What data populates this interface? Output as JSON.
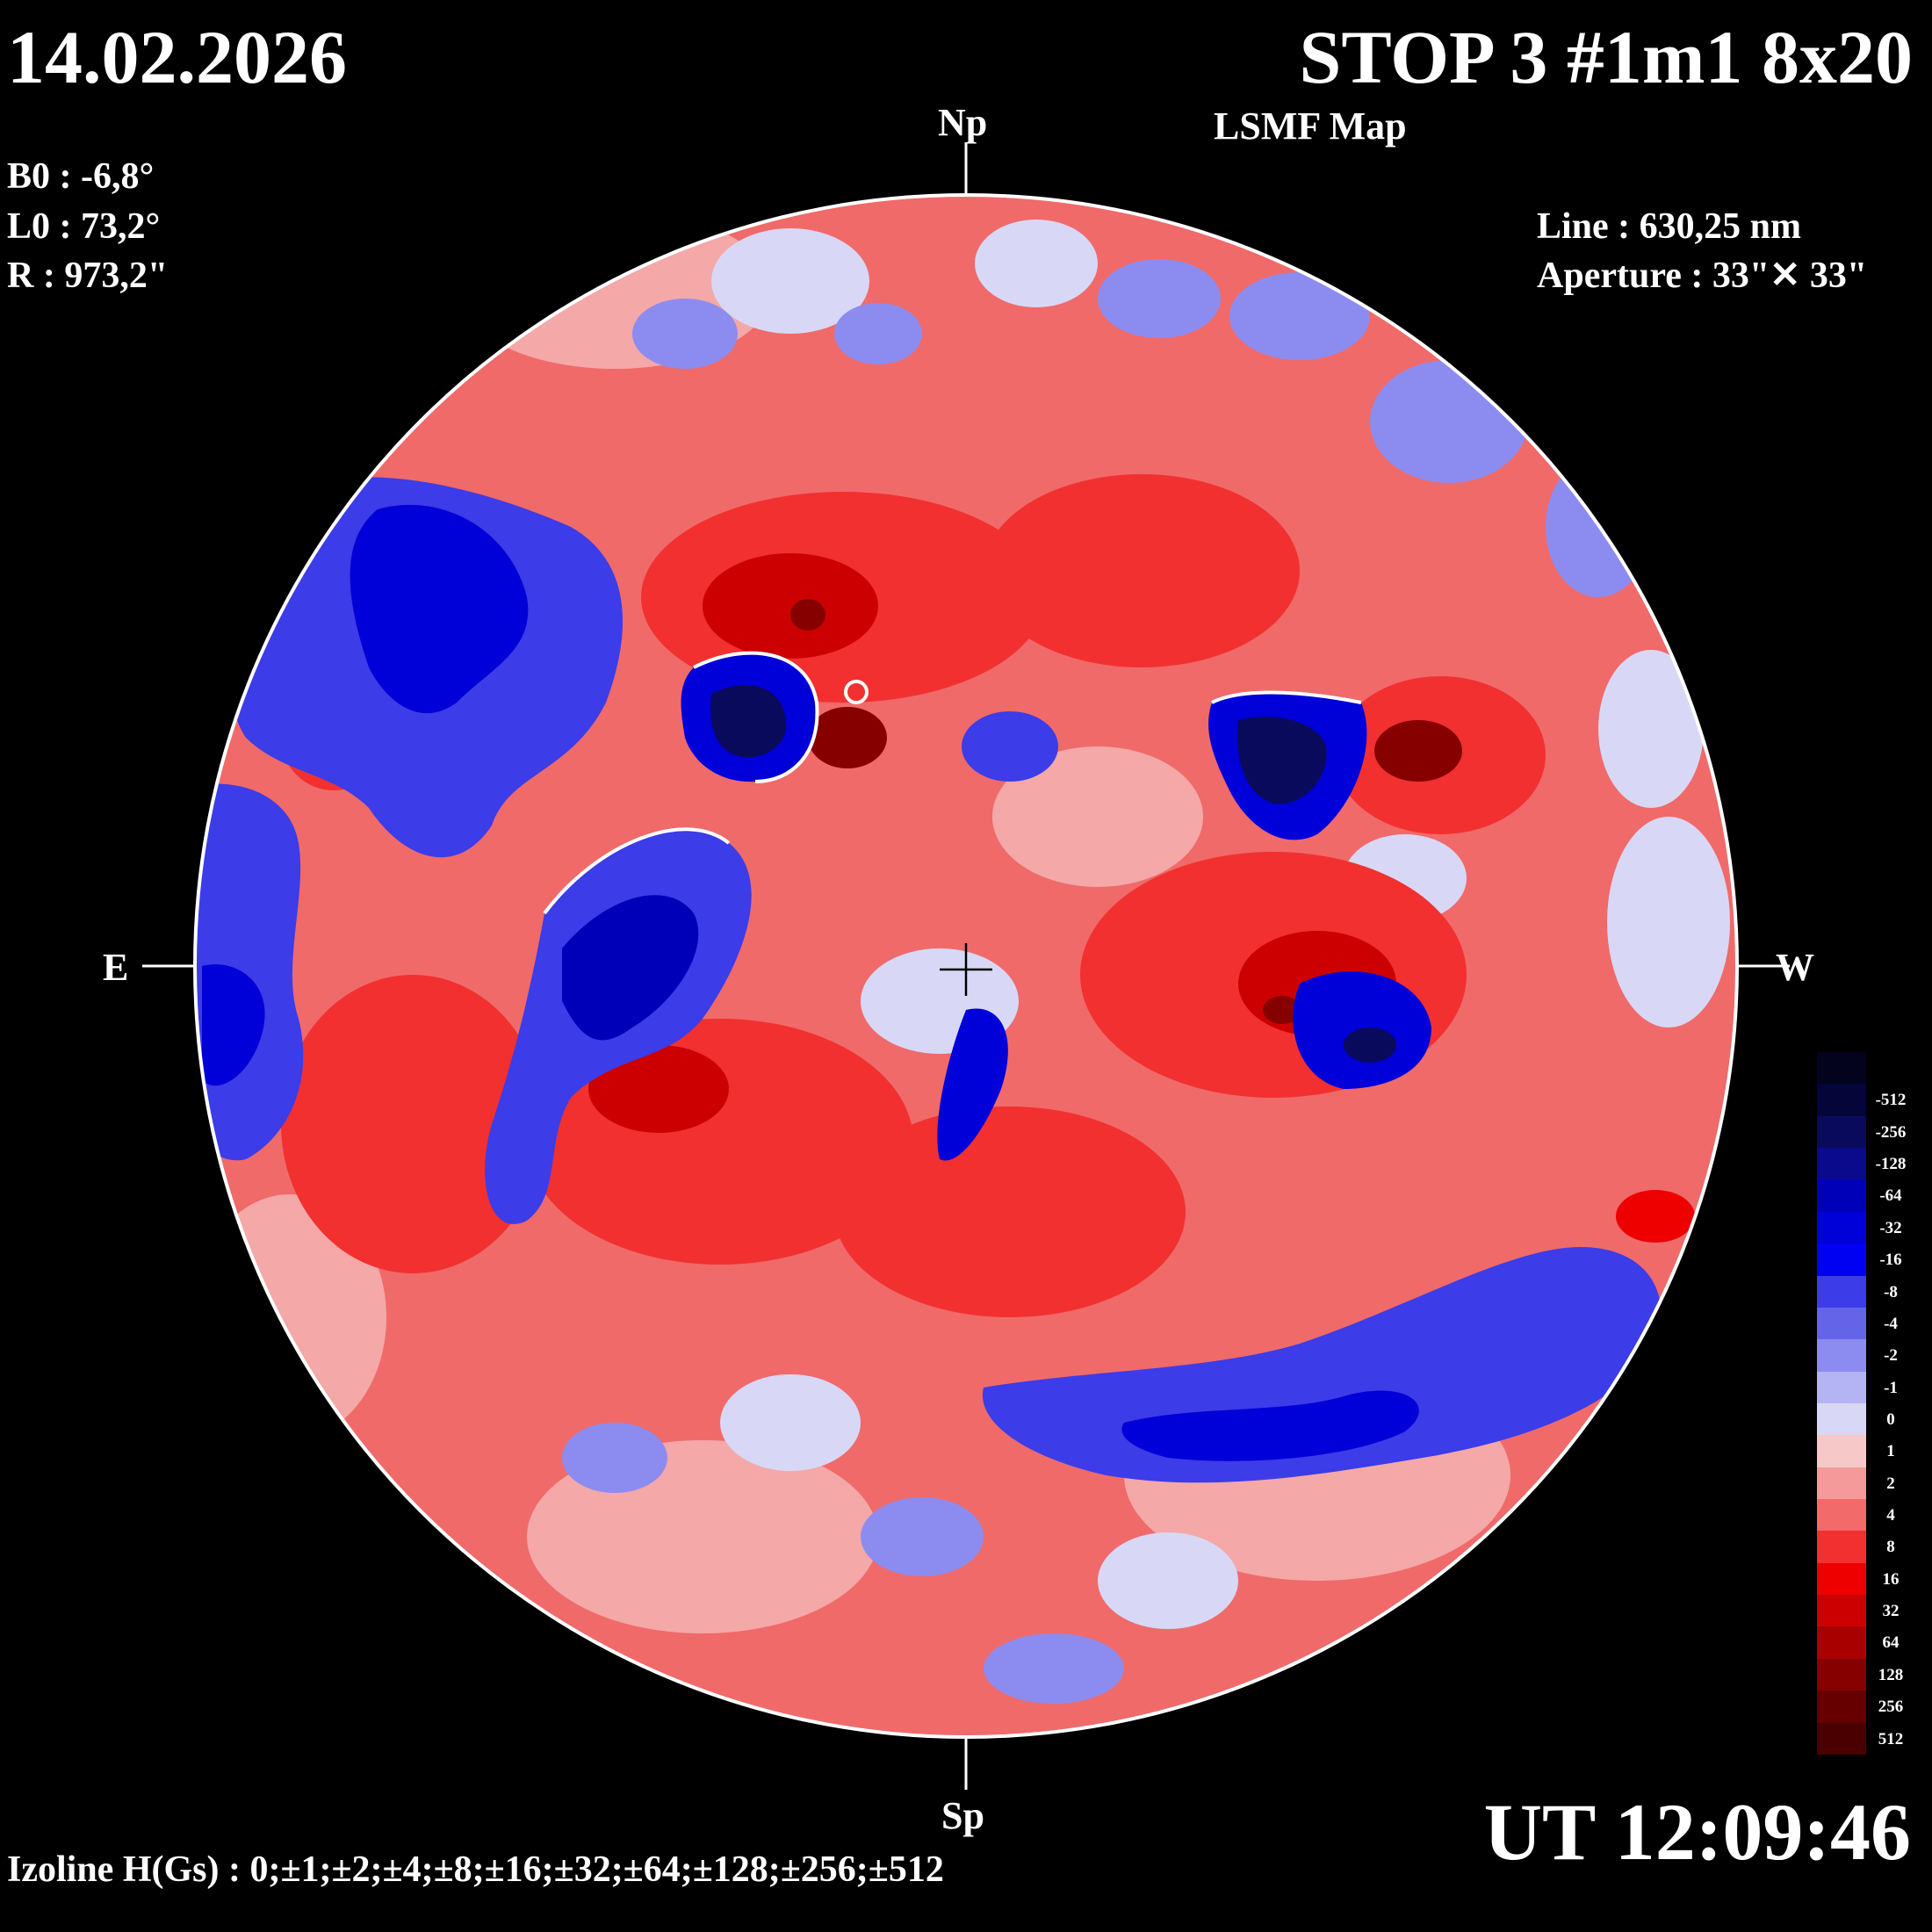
{
  "header": {
    "date": "14.02.2026",
    "title": "STOP 3 #1m1 8x20",
    "subtitle": "LSMF  Map"
  },
  "params": {
    "b0": "B0 : -6,8°",
    "l0": "L0 : 73,2°",
    "r": "R  : 973,2\"",
    "line": "Line :  630,25 nm",
    "aperture": "Aperture : 33\"✕ 33\""
  },
  "directions": {
    "north": "Np",
    "south": "Sp",
    "east": "E",
    "west": "W"
  },
  "footer": {
    "ut": "UT 12:09:46",
    "izoline": "Izoline H(Gs) : 0;±1;±2;±4;±8;±16;±32;±64;±128;±256;±512"
  },
  "colorbar": {
    "levels": [
      {
        "label": "",
        "color": "#03031e"
      },
      {
        "label": "-512",
        "color": "#05053a"
      },
      {
        "label": "-256",
        "color": "#0a0a5c"
      },
      {
        "label": "-128",
        "color": "#0a0a8c"
      },
      {
        "label": "-64",
        "color": "#0000b8"
      },
      {
        "label": "-32",
        "color": "#0000d8"
      },
      {
        "label": "-16",
        "color": "#0000f2"
      },
      {
        "label": "-8",
        "color": "#3c3ce8"
      },
      {
        "label": "-4",
        "color": "#6464e8"
      },
      {
        "label": "-2",
        "color": "#8c8cf0"
      },
      {
        "label": "-1",
        "color": "#b4b4f4"
      },
      {
        "label": "0",
        "color": "#d8d8f6"
      },
      {
        "label": "1",
        "color": "#f6c8c8"
      },
      {
        "label": "2",
        "color": "#f49a9a"
      },
      {
        "label": "4",
        "color": "#f26a6a"
      },
      {
        "label": "8",
        "color": "#f23030"
      },
      {
        "label": "16",
        "color": "#ee0000"
      },
      {
        "label": "32",
        "color": "#cc0000"
      },
      {
        "label": "64",
        "color": "#a80000"
      },
      {
        "label": "128",
        "color": "#860000"
      },
      {
        "label": "256",
        "color": "#660000"
      },
      {
        "label": "512",
        "color": "#4a0000"
      }
    ]
  }
}
